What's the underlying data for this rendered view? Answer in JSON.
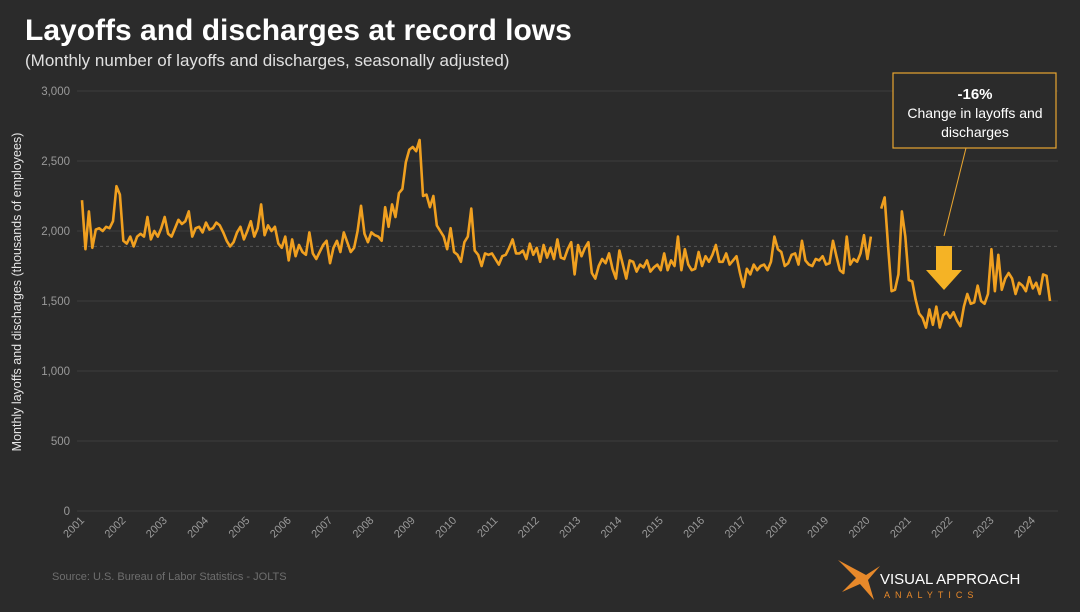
{
  "chart_data": {
    "type": "line",
    "title": "Layoffs and discharges at record lows",
    "subtitle": "(Monthly number of layoffs and discharges, seasonally adjusted)",
    "y_label": "Monthly layoffs and discharges (thousands of employees)",
    "source": "Source: U.S. Bureau of Labor Statistics - JOLTS",
    "annotation": {
      "headline": "-16%",
      "lines": [
        "Change in layoffs and",
        "discharges"
      ]
    },
    "logo": {
      "name": "VISUAL APPROACH",
      "tagline": "ANALYTICS"
    },
    "ylim": [
      0,
      3000
    ],
    "yticks": [
      0,
      500,
      {
        "value": 1000,
        "label": "1,000"
      },
      {
        "value": 1500,
        "label": "1,500"
      },
      {
        "value": 2000,
        "label": "2,000"
      },
      {
        "value": 2500,
        "label": "2,500"
      },
      {
        "value": 3000,
        "label": "3,000"
      }
    ],
    "grid": true,
    "reference_line": 1890,
    "categories": [
      "2001",
      null,
      null,
      null,
      null,
      null,
      null,
      null,
      null,
      null,
      null,
      null,
      "2002",
      null,
      null,
      null,
      null,
      null,
      null,
      null,
      null,
      null,
      null,
      null,
      "2003",
      null,
      null,
      null,
      null,
      null,
      null,
      null,
      null,
      null,
      null,
      null,
      "2004",
      null,
      null,
      null,
      null,
      null,
      null,
      null,
      null,
      null,
      null,
      null,
      "2005",
      null,
      null,
      null,
      null,
      null,
      null,
      null,
      null,
      null,
      null,
      null,
      "2006",
      null,
      null,
      null,
      null,
      null,
      null,
      null,
      null,
      null,
      null,
      null,
      "2007",
      null,
      null,
      null,
      null,
      null,
      null,
      null,
      null,
      null,
      null,
      null,
      "2008",
      null,
      null,
      null,
      null,
      null,
      null,
      null,
      null,
      null,
      null,
      null,
      "2009",
      null,
      null,
      null,
      null,
      null,
      null,
      null,
      null,
      null,
      null,
      null,
      "2010",
      null,
      null,
      null,
      null,
      null,
      null,
      null,
      null,
      null,
      null,
      null,
      "2011",
      null,
      null,
      null,
      null,
      null,
      null,
      null,
      null,
      null,
      null,
      null,
      "2012",
      null,
      null,
      null,
      null,
      null,
      null,
      null,
      null,
      null,
      null,
      null,
      "2013",
      null,
      null,
      null,
      null,
      null,
      null,
      null,
      null,
      null,
      null,
      null,
      "2014",
      null,
      null,
      null,
      null,
      null,
      null,
      null,
      null,
      null,
      null,
      null,
      "2015",
      null,
      null,
      null,
      null,
      null,
      null,
      null,
      null,
      null,
      null,
      null,
      "2016",
      null,
      null,
      null,
      null,
      null,
      null,
      null,
      null,
      null,
      null,
      null,
      "2017",
      null,
      null,
      null,
      null,
      null,
      null,
      null,
      null,
      null,
      null,
      null,
      "2018",
      null,
      null,
      null,
      null,
      null,
      null,
      null,
      null,
      null,
      null,
      null,
      "2019",
      null,
      null,
      null,
      null,
      null,
      null,
      null,
      null,
      null,
      null,
      null,
      "2020",
      null,
      null,
      null,
      null,
      null,
      null,
      null,
      null,
      null,
      null,
      null,
      "2021",
      null,
      null,
      null,
      null,
      null,
      null,
      null,
      null,
      null,
      null,
      null,
      "2022",
      null,
      null,
      null,
      null,
      null,
      null,
      null,
      null,
      null,
      null,
      null,
      "2023",
      null,
      null,
      null,
      null,
      null,
      null,
      null,
      null,
      null,
      null,
      null,
      "2024",
      null,
      null,
      null,
      null,
      null
    ],
    "series": [
      {
        "name": "Layoffs and discharges",
        "color": "#f0a020",
        "values": [
          2220,
          1870,
          2140,
          1880,
          2010,
          2020,
          2000,
          2030,
          2020,
          2070,
          2320,
          2260,
          1930,
          1910,
          1960,
          1890,
          1960,
          1980,
          1960,
          2100,
          1940,
          2000,
          1960,
          2020,
          2100,
          1980,
          1960,
          2020,
          2080,
          2050,
          2070,
          2140,
          1960,
          2020,
          2030,
          1990,
          2060,
          2010,
          2020,
          2060,
          2040,
          1990,
          1930,
          1890,
          1920,
          1990,
          2030,
          1940,
          2000,
          2070,
          1960,
          2020,
          2190,
          1970,
          2040,
          2000,
          2030,
          1910,
          1880,
          1960,
          1790,
          1940,
          1820,
          1900,
          1850,
          1830,
          1990,
          1840,
          1800,
          1850,
          1900,
          1930,
          1770,
          1880,
          1930,
          1850,
          1990,
          1920,
          1850,
          1880,
          2000,
          2180,
          1980,
          1920,
          1990,
          1970,
          1960,
          1930,
          2170,
          2030,
          2190,
          2100,
          2270,
          2300,
          2490,
          2580,
          2600,
          2570,
          2650,
          2250,
          2260,
          2170,
          2250,
          2040,
          2000,
          1960,
          1870,
          2020,
          1850,
          1830,
          1780,
          1920,
          1960,
          2160,
          1860,
          1830,
          1750,
          1840,
          1830,
          1840,
          1800,
          1760,
          1820,
          1830,
          1880,
          1940,
          1840,
          1840,
          1860,
          1800,
          1910,
          1830,
          1880,
          1780,
          1900,
          1810,
          1880,
          1800,
          1940,
          1810,
          1800,
          1870,
          1920,
          1690,
          1900,
          1820,
          1880,
          1920,
          1700,
          1660,
          1750,
          1800,
          1770,
          1840,
          1730,
          1660,
          1860,
          1760,
          1660,
          1790,
          1780,
          1710,
          1760,
          1740,
          1790,
          1710,
          1740,
          1760,
          1720,
          1840,
          1720,
          1790,
          1750,
          1960,
          1720,
          1870,
          1760,
          1720,
          1730,
          1850,
          1750,
          1820,
          1780,
          1830,
          1900,
          1780,
          1780,
          1840,
          1760,
          1790,
          1820,
          1700,
          1600,
          1730,
          1690,
          1760,
          1720,
          1750,
          1760,
          1720,
          1780,
          1960,
          1870,
          1850,
          1750,
          1770,
          1830,
          1840,
          1760,
          1930,
          1790,
          1760,
          1750,
          1800,
          1790,
          1820,
          1760,
          1770,
          1930,
          1820,
          1720,
          1700,
          1960,
          1760,
          1800,
          1780,
          1840,
          1970,
          1800,
          1960,
          null,
          null,
          2160,
          2240,
          1890,
          1570,
          1580,
          1690,
          2140,
          1960,
          1650,
          1640,
          1510,
          1410,
          1380,
          1310,
          1440,
          1330,
          1460,
          1310,
          1400,
          1420,
          1380,
          1420,
          1360,
          1320,
          1460,
          1550,
          1480,
          1490,
          1610,
          1500,
          1480,
          1550,
          1870,
          1570,
          1830,
          1580,
          1660,
          1700,
          1660,
          1550,
          1630,
          1610,
          1570,
          1670,
          1590,
          1630,
          1550,
          1690,
          1680,
          1500
        ]
      }
    ]
  }
}
